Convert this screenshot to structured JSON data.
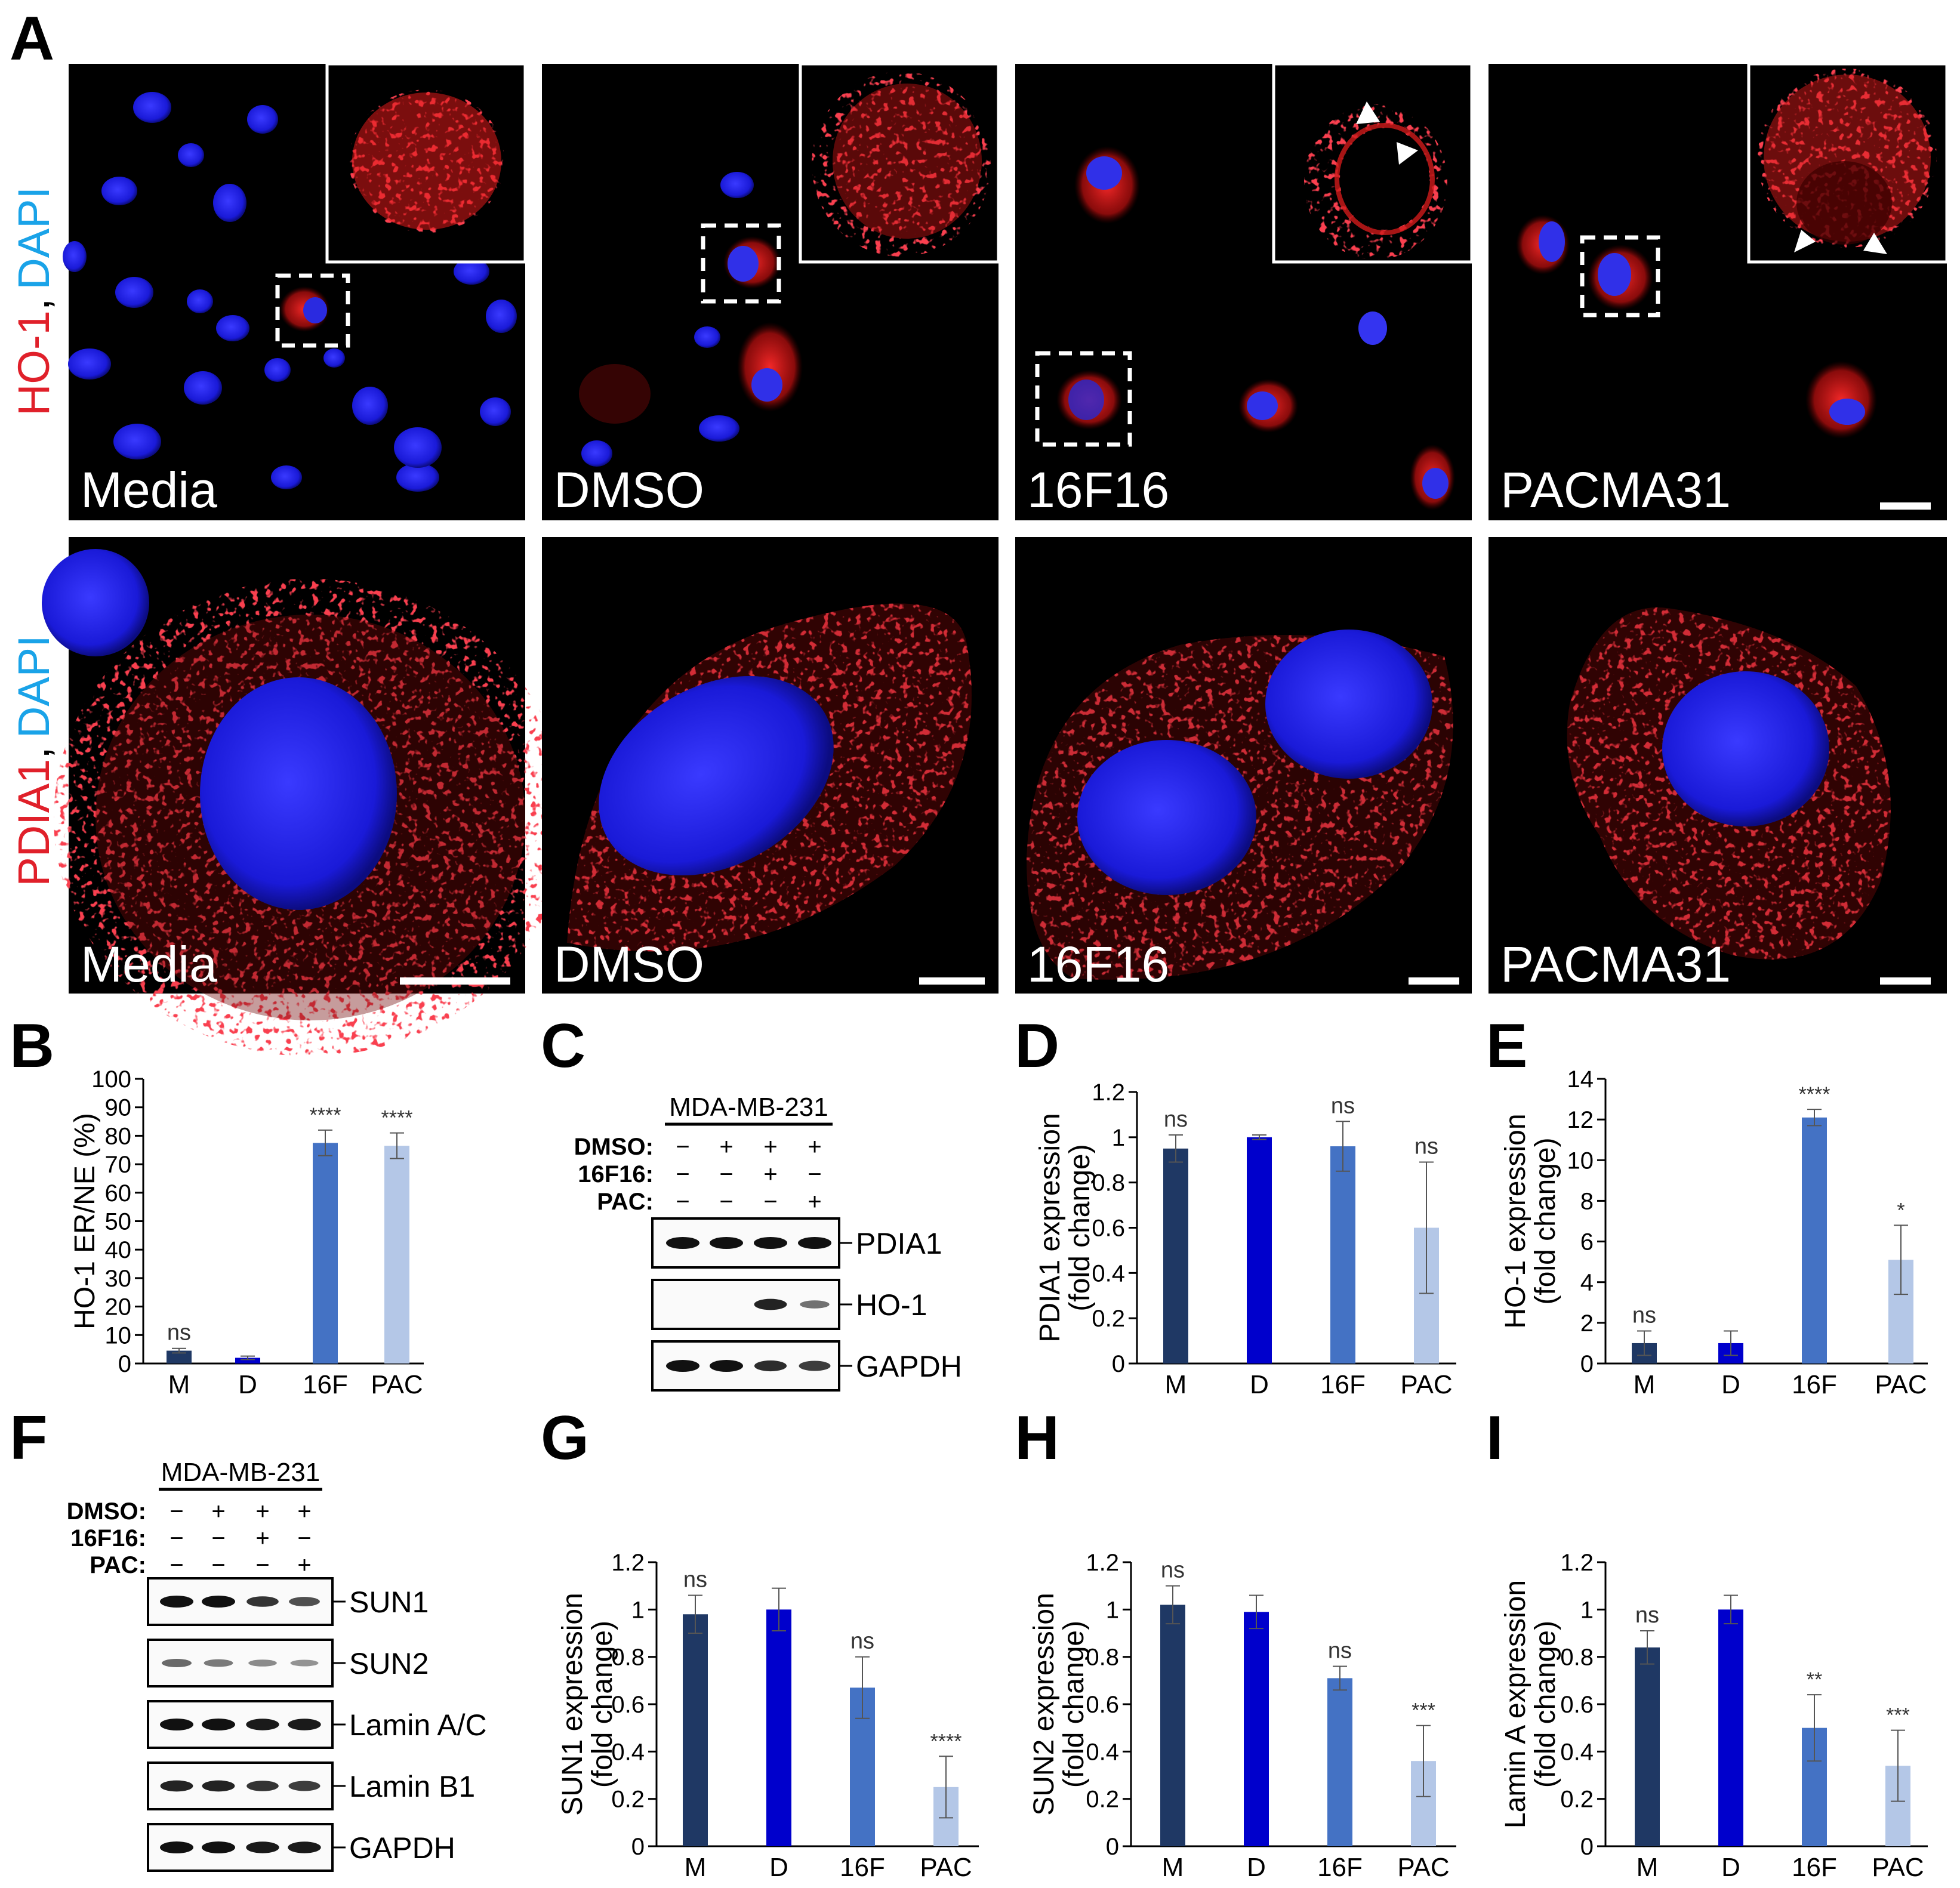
{
  "panel_letters": {
    "A": "A",
    "B": "B",
    "C": "C",
    "D": "D",
    "E": "E",
    "F": "F",
    "G": "G",
    "H": "H",
    "I": "I"
  },
  "panel_A": {
    "row1_label": {
      "target": "HO-1",
      "sep": ",",
      "stain": "DAPI"
    },
    "row2_label": {
      "target": "PDIA1",
      "sep": ",",
      "stain": "DAPI"
    },
    "conditions": [
      "Media",
      "DMSO",
      "16F16",
      "PACMA31"
    ],
    "colors": {
      "target": "#e0202a",
      "stain": "#1aa3e8"
    }
  },
  "western_C": {
    "cell_line": "MDA-MB-231",
    "treatments": [
      {
        "label": "DMSO:",
        "marks": [
          "−",
          "+",
          "+",
          "+"
        ]
      },
      {
        "label": "16F16:",
        "marks": [
          "−",
          "−",
          "+",
          "−"
        ]
      },
      {
        "label": "PAC:",
        "marks": [
          "−",
          "−",
          "−",
          "+"
        ]
      }
    ],
    "blots": [
      "PDIA1",
      "HO-1",
      "GAPDH"
    ],
    "band_intensity": [
      [
        1,
        1,
        1,
        1
      ],
      [
        0,
        0,
        0.9,
        0.45
      ],
      [
        1,
        1,
        0.85,
        0.75
      ]
    ]
  },
  "western_F": {
    "cell_line": "MDA-MB-231",
    "treatments": [
      {
        "label": "DMSO:",
        "marks": [
          "−",
          "+",
          "+",
          "+"
        ]
      },
      {
        "label": "16F16:",
        "marks": [
          "−",
          "−",
          "+",
          "−"
        ]
      },
      {
        "label": "PAC:",
        "marks": [
          "−",
          "−",
          "−",
          "+"
        ]
      }
    ],
    "blots": [
      "SUN1",
      "SUN2",
      "Lamin A/C",
      "Lamin B1",
      "GAPDH"
    ],
    "band_intensity": [
      [
        1,
        1,
        0.8,
        0.65
      ],
      [
        0.5,
        0.4,
        0.3,
        0.25
      ],
      [
        1,
        1,
        0.95,
        0.95
      ],
      [
        0.9,
        0.9,
        0.8,
        0.75
      ],
      [
        1,
        1,
        0.95,
        0.95
      ]
    ]
  },
  "chart_data": [
    {
      "panel": "B",
      "type": "bar",
      "categories": [
        "M",
        "D",
        "16F",
        "PAC"
      ],
      "values": [
        4.5,
        2,
        77.5,
        76.5
      ],
      "errors": [
        0.8,
        0.6,
        4.5,
        4.5
      ],
      "significance": [
        "ns",
        "",
        "****",
        "****"
      ],
      "ylabel": "HO-1 ER/NE (%)",
      "ylim": [
        0,
        100
      ],
      "yticks": [
        0,
        10,
        20,
        30,
        40,
        50,
        60,
        70,
        80,
        90,
        100
      ],
      "colors": [
        "#1f3864",
        "#0000cc",
        "#4472c4",
        "#b4c7e7"
      ]
    },
    {
      "panel": "D",
      "type": "bar",
      "categories": [
        "M",
        "D",
        "16F",
        "PAC"
      ],
      "values": [
        0.95,
        1.0,
        0.96,
        0.6
      ],
      "errors": [
        0.06,
        0.01,
        0.11,
        0.29
      ],
      "significance": [
        "ns",
        "",
        "ns",
        "ns"
      ],
      "ylabel": [
        "PDIA1 expression",
        "(fold change)"
      ],
      "ylim": [
        0,
        1.2
      ],
      "yticks": [
        0,
        0.2,
        0.4,
        0.6,
        0.8,
        1.0,
        1.2
      ],
      "colors": [
        "#1f3864",
        "#0000cc",
        "#4472c4",
        "#b4c7e7"
      ]
    },
    {
      "panel": "E",
      "type": "bar",
      "categories": [
        "M",
        "D",
        "16F",
        "PAC"
      ],
      "values": [
        1.0,
        1.0,
        12.1,
        5.1
      ],
      "errors": [
        0.6,
        0.6,
        0.4,
        1.7
      ],
      "significance": [
        "ns",
        "",
        "****",
        "*"
      ],
      "ylabel": [
        "HO-1 expression",
        "(fold change)"
      ],
      "ylim": [
        0,
        14
      ],
      "yticks": [
        0,
        2,
        4,
        6,
        8,
        10,
        12,
        14
      ],
      "colors": [
        "#1f3864",
        "#0000cc",
        "#4472c4",
        "#b4c7e7"
      ]
    },
    {
      "panel": "G",
      "type": "bar",
      "categories": [
        "M",
        "D",
        "16F",
        "PAC"
      ],
      "values": [
        0.98,
        1.0,
        0.67,
        0.25
      ],
      "errors": [
        0.08,
        0.09,
        0.13,
        0.13
      ],
      "significance": [
        "ns",
        "",
        "ns",
        "****"
      ],
      "ylabel": [
        "SUN1 expression",
        "(fold change)"
      ],
      "ylim": [
        0,
        1.2
      ],
      "yticks": [
        0,
        0.2,
        0.4,
        0.6,
        0.8,
        1.0,
        1.2
      ],
      "colors": [
        "#1f3864",
        "#0000cc",
        "#4472c4",
        "#b4c7e7"
      ]
    },
    {
      "panel": "H",
      "type": "bar",
      "categories": [
        "M",
        "D",
        "16F",
        "PAC"
      ],
      "values": [
        1.02,
        0.99,
        0.71,
        0.36
      ],
      "errors": [
        0.08,
        0.07,
        0.05,
        0.15
      ],
      "significance": [
        "ns",
        "",
        "ns",
        "***"
      ],
      "ylabel": [
        "SUN2 expression",
        "(fold change)"
      ],
      "ylim": [
        0,
        1.2
      ],
      "yticks": [
        0,
        0.2,
        0.4,
        0.6,
        0.8,
        1.0,
        1.2
      ],
      "colors": [
        "#1f3864",
        "#0000cc",
        "#4472c4",
        "#b4c7e7"
      ]
    },
    {
      "panel": "I",
      "type": "bar",
      "categories": [
        "M",
        "D",
        "16F",
        "PAC"
      ],
      "values": [
        0.84,
        1.0,
        0.5,
        0.34
      ],
      "errors": [
        0.07,
        0.06,
        0.14,
        0.15
      ],
      "significance": [
        "ns",
        "",
        "**",
        "***"
      ],
      "ylabel": [
        "Lamin A expression",
        "(fold change)"
      ],
      "ylim": [
        0,
        1.2
      ],
      "yticks": [
        0,
        0.2,
        0.4,
        0.6,
        0.8,
        1.0,
        1.2
      ],
      "colors": [
        "#1f3864",
        "#0000cc",
        "#4472c4",
        "#b4c7e7"
      ]
    }
  ]
}
